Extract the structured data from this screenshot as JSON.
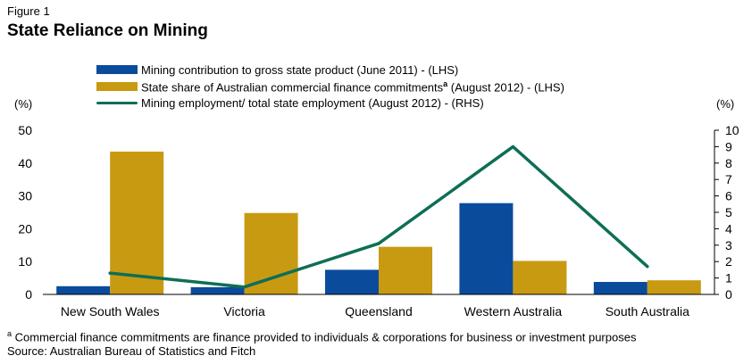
{
  "figure_label": "Figure 1",
  "title": "State Reliance on Mining",
  "colors": {
    "mining_gsp": "#0a4b9c",
    "finance_share": "#c89a12",
    "employment": "#0e6e56"
  },
  "legend": {
    "item1": "Mining contribution to gross state product (June 2011) - (LHS)",
    "item2_pre": "State share of Australian commercial finance commitments",
    "item2_sup": "a",
    "item2_post": " (August 2012) - (LHS)",
    "item3": "Mining employment/ total state employment (August 2012) - (RHS)"
  },
  "axis": {
    "left_unit": "(%)",
    "right_unit": "(%)"
  },
  "chart_data": {
    "type": "bar",
    "categories": [
      "New South Wales",
      "Victoria",
      "Queensland",
      "Western Australia",
      "South Australia"
    ],
    "series": [
      {
        "name": "Mining contribution to gross state product (June 2011) - (LHS)",
        "kind": "bar",
        "axis": "left",
        "values": [
          2.5,
          2.2,
          7.5,
          27.8,
          3.8
        ]
      },
      {
        "name": "State share of Australian commercial finance commitments (August 2012) - (LHS)",
        "kind": "bar",
        "axis": "left",
        "values": [
          43.5,
          24.8,
          14.5,
          10.2,
          4.3
        ]
      },
      {
        "name": "Mining employment/ total state employment (August 2012) - (RHS)",
        "kind": "line",
        "axis": "right",
        "values": [
          1.3,
          0.45,
          3.1,
          9.0,
          1.7
        ]
      }
    ],
    "left_ticks": [
      0,
      10,
      20,
      30,
      40,
      50
    ],
    "right_ticks": [
      0,
      1,
      2,
      3,
      4,
      5,
      6,
      7,
      8,
      9,
      10
    ],
    "ylim_left": [
      0,
      50
    ],
    "ylim_right": [
      0,
      10
    ],
    "grid": false,
    "legend_position": "top"
  },
  "footnote": {
    "marker": "a",
    "text": " Commercial finance commitments are finance provided to individuals & corporations for business or investment purposes",
    "source": "Source: Australian Bureau of Statistics and Fitch"
  }
}
